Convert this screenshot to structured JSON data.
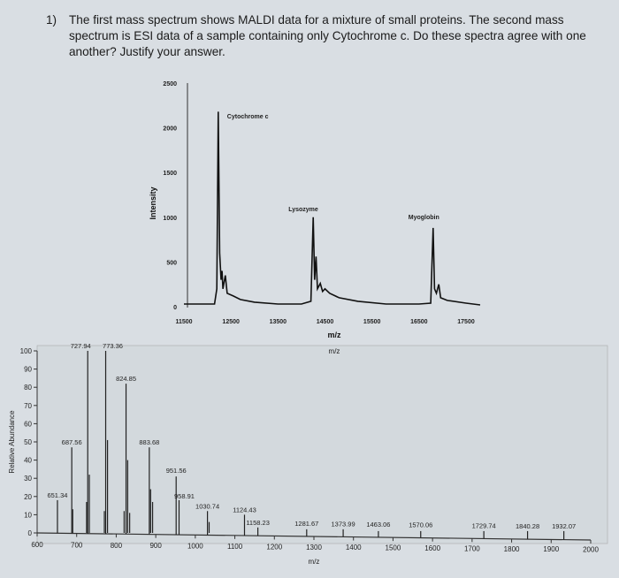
{
  "question": {
    "number": "1)",
    "text": "The first mass spectrum shows MALDI data for a mixture of small proteins. The second mass spectrum is ESI data of a sample containing only Cytochrome c. Do these spectra agree with one another? Justify your answer."
  },
  "chart_data": [
    {
      "type": "line",
      "title": "",
      "xlabel": "m/z",
      "ylabel": "Intensity",
      "xlim": [
        11500,
        17800
      ],
      "ylim": [
        0,
        2500
      ],
      "x_ticks": [
        "11500",
        "12500",
        "13500",
        "14500",
        "15500",
        "16500",
        "17500"
      ],
      "y_ticks": [
        "0",
        "500",
        "1000",
        "1500",
        "2000",
        "2500"
      ],
      "grid": false,
      "annotations": [
        {
          "text": "Cytochrome c",
          "x": 12230,
          "y": 2180
        },
        {
          "text": "Lysozyme",
          "x": 14250,
          "y": 1000
        },
        {
          "text": "Myoglobin",
          "x": 16800,
          "y": 880
        }
      ],
      "series": [
        {
          "x": [
            11500,
            12150,
            12200,
            12230,
            12260,
            12290,
            12310,
            12330,
            12380,
            12420,
            12550,
            12700,
            13000,
            13500,
            14000,
            14200,
            14250,
            14280,
            14310,
            14340,
            14400,
            14450,
            14500,
            14600,
            14800,
            15200,
            15800,
            16500,
            16750,
            16800,
            16830,
            16870,
            16920,
            16960,
            17100,
            17500,
            17800
          ],
          "y": [
            30,
            30,
            200,
            2180,
            600,
            300,
            400,
            200,
            350,
            150,
            120,
            80,
            50,
            30,
            30,
            60,
            1000,
            300,
            560,
            200,
            260,
            170,
            200,
            150,
            100,
            60,
            30,
            30,
            40,
            880,
            200,
            150,
            250,
            100,
            70,
            40,
            20
          ]
        }
      ],
      "color": "#111111"
    },
    {
      "type": "bar",
      "title": "m/z",
      "xlabel": "m/z",
      "ylabel": "Relative Abundance",
      "xlim": [
        600,
        2000
      ],
      "ylim": [
        0,
        100
      ],
      "x_ticks": [
        "600",
        "700",
        "800",
        "900",
        "1000",
        "1100",
        "1200",
        "1300",
        "1400",
        "1500",
        "1600",
        "1700",
        "1800",
        "1900",
        "2000"
      ],
      "y_ticks": [
        "0",
        "10",
        "20",
        "30",
        "40",
        "50",
        "60",
        "70",
        "80",
        "90",
        "100"
      ],
      "grid": false,
      "labeled_peaks": [
        {
          "mz": 651.34,
          "label": "651.34",
          "abundance": 18
        },
        {
          "mz": 687.56,
          "label": "687.56",
          "abundance": 47
        },
        {
          "mz": 727.94,
          "label": "727.94",
          "abundance": 100
        },
        {
          "mz": 773.36,
          "label": "773.36",
          "abundance": 100
        },
        {
          "mz": 824.85,
          "label": "824.85",
          "abundance": 82
        },
        {
          "mz": 883.68,
          "label": "883.68",
          "abundance": 47
        },
        {
          "mz": 951.56,
          "label": "951.56",
          "abundance": 31
        },
        {
          "mz": 958.91,
          "label": "958.91",
          "abundance": 18
        },
        {
          "mz": 1030.74,
          "label": "1030.74",
          "abundance": 12
        },
        {
          "mz": 1124.43,
          "label": "1124.43",
          "abundance": 10
        },
        {
          "mz": 1158.23,
          "label": "1158.23",
          "abundance": 3
        },
        {
          "mz": 1281.67,
          "label": "1281.67",
          "abundance": 2
        },
        {
          "mz": 1373.99,
          "label": "1373.99",
          "abundance": 2
        },
        {
          "mz": 1463.06,
          "label": "1463.06",
          "abundance": 1
        },
        {
          "mz": 1570.06,
          "label": "1570.06",
          "abundance": 1
        },
        {
          "mz": 1729.74,
          "label": "1729.74",
          "abundance": 1
        },
        {
          "mz": 1840.28,
          "label": "1840.28",
          "abundance": 1
        },
        {
          "mz": 1932.07,
          "label": "1932.07",
          "abundance": 1
        }
      ],
      "unlabeled_peaks": [
        {
          "mz": 690,
          "abundance": 13
        },
        {
          "mz": 725,
          "abundance": 17
        },
        {
          "mz": 732,
          "abundance": 32
        },
        {
          "mz": 770,
          "abundance": 12
        },
        {
          "mz": 778,
          "abundance": 51
        },
        {
          "mz": 820,
          "abundance": 12
        },
        {
          "mz": 829,
          "abundance": 40
        },
        {
          "mz": 834,
          "abundance": 11
        },
        {
          "mz": 887,
          "abundance": 24
        },
        {
          "mz": 892,
          "abundance": 17
        },
        {
          "mz": 1035,
          "abundance": 6
        }
      ],
      "color": "#222222",
      "background": "#d3d9dd"
    }
  ]
}
